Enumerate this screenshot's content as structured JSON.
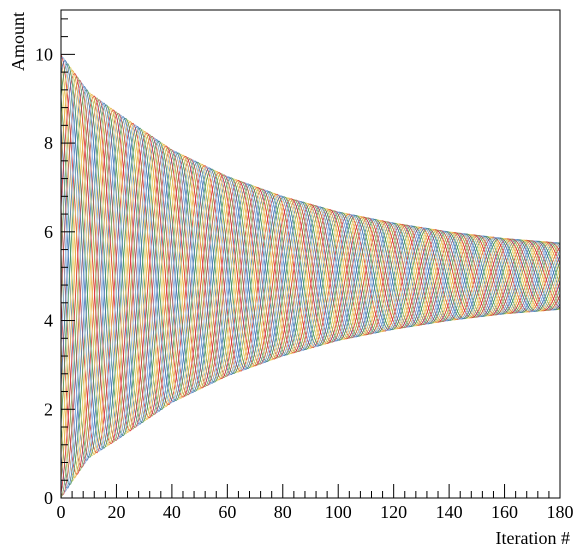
{
  "chart_data": {
    "type": "line",
    "title": "",
    "xlabel": "Iteration #",
    "ylabel": "Amount",
    "xlim": [
      0,
      180
    ],
    "ylim": [
      0,
      11
    ],
    "x_major_ticks": [
      0,
      20,
      40,
      60,
      80,
      100,
      120,
      140,
      160,
      180
    ],
    "y_major_ticks": [
      0,
      2,
      4,
      6,
      8,
      10
    ],
    "grid": false,
    "legend": "none",
    "envelope": {
      "x": [
        0,
        10,
        20,
        40,
        60,
        80,
        100,
        120,
        140,
        160,
        180
      ],
      "upper": [
        10.0,
        9.15,
        8.7,
        7.85,
        7.25,
        6.8,
        6.45,
        6.2,
        6.0,
        5.85,
        5.75
      ],
      "lower": [
        0.0,
        0.9,
        1.3,
        2.15,
        2.75,
        3.2,
        3.55,
        3.8,
        4.0,
        4.15,
        4.25
      ]
    },
    "centerline": 5.0,
    "series_count": 30,
    "oscillation_period": 26,
    "palette": [
      "#d62728",
      "#e8a33a",
      "#e6d36a",
      "#3f8f5a",
      "#3a6fb0",
      "#7ea6d8",
      "#b34a4a",
      "#8aa85a"
    ]
  }
}
